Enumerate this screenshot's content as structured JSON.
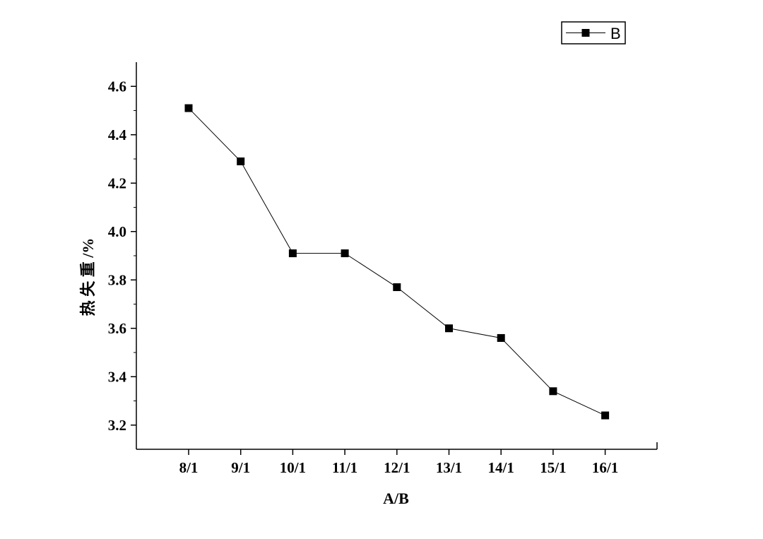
{
  "chart_data": {
    "type": "line",
    "xlabel": "A/B",
    "ylabel": "热 失 重 /%",
    "categories": [
      "8/1",
      "9/1",
      "10/1",
      "11/1",
      "12/1",
      "13/1",
      "14/1",
      "15/1",
      "16/1"
    ],
    "series": [
      {
        "name": "B",
        "values": [
          4.51,
          4.29,
          3.91,
          3.91,
          3.77,
          3.6,
          3.56,
          3.34,
          3.24
        ],
        "color": "#000000",
        "marker": "square"
      }
    ],
    "ylim": [
      3.1,
      4.7
    ],
    "yticks": [
      3.2,
      3.4,
      3.6,
      3.8,
      4.0,
      4.2,
      4.4,
      4.6
    ],
    "ytick_labels": [
      "3.2",
      "3.4",
      "3.6",
      "3.8",
      "4.0",
      "4.2",
      "4.4",
      "4.6"
    ],
    "grid": false,
    "legend": "top-right"
  }
}
